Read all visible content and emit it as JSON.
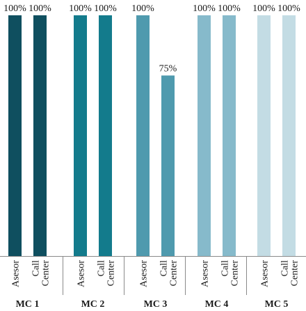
{
  "chart_data": {
    "type": "bar",
    "ylim": [
      0,
      100
    ],
    "grid": false,
    "groups": [
      {
        "label": "MC 1",
        "color": "#0f4f5f",
        "bars": [
          {
            "category": "Asesor",
            "value": 100,
            "value_label": "100%"
          },
          {
            "category": "Call Center",
            "value": 100,
            "value_label": "100%"
          }
        ]
      },
      {
        "label": "MC 2",
        "color": "#137b8c",
        "bars": [
          {
            "category": "Asesor",
            "value": 100,
            "value_label": "100%"
          },
          {
            "category": "Call Center",
            "value": 100,
            "value_label": "100%"
          }
        ]
      },
      {
        "label": "MC 3",
        "color": "#4f9aae",
        "bars": [
          {
            "category": "Asesor",
            "value": 100,
            "value_label": "100%"
          },
          {
            "category": "Call Center",
            "value": 75,
            "value_label": "75%"
          }
        ]
      },
      {
        "label": "MC 4",
        "color": "#86bacb",
        "bars": [
          {
            "category": "Asesor",
            "value": 100,
            "value_label": "100%"
          },
          {
            "category": "Call Center",
            "value": 100,
            "value_label": "100%"
          }
        ]
      },
      {
        "label": "MC 5",
        "color": "#c3dce4",
        "bars": [
          {
            "category": "Asesor",
            "value": 100,
            "value_label": "100%"
          },
          {
            "category": "Call Center",
            "value": 100,
            "value_label": "100%"
          }
        ]
      }
    ]
  }
}
